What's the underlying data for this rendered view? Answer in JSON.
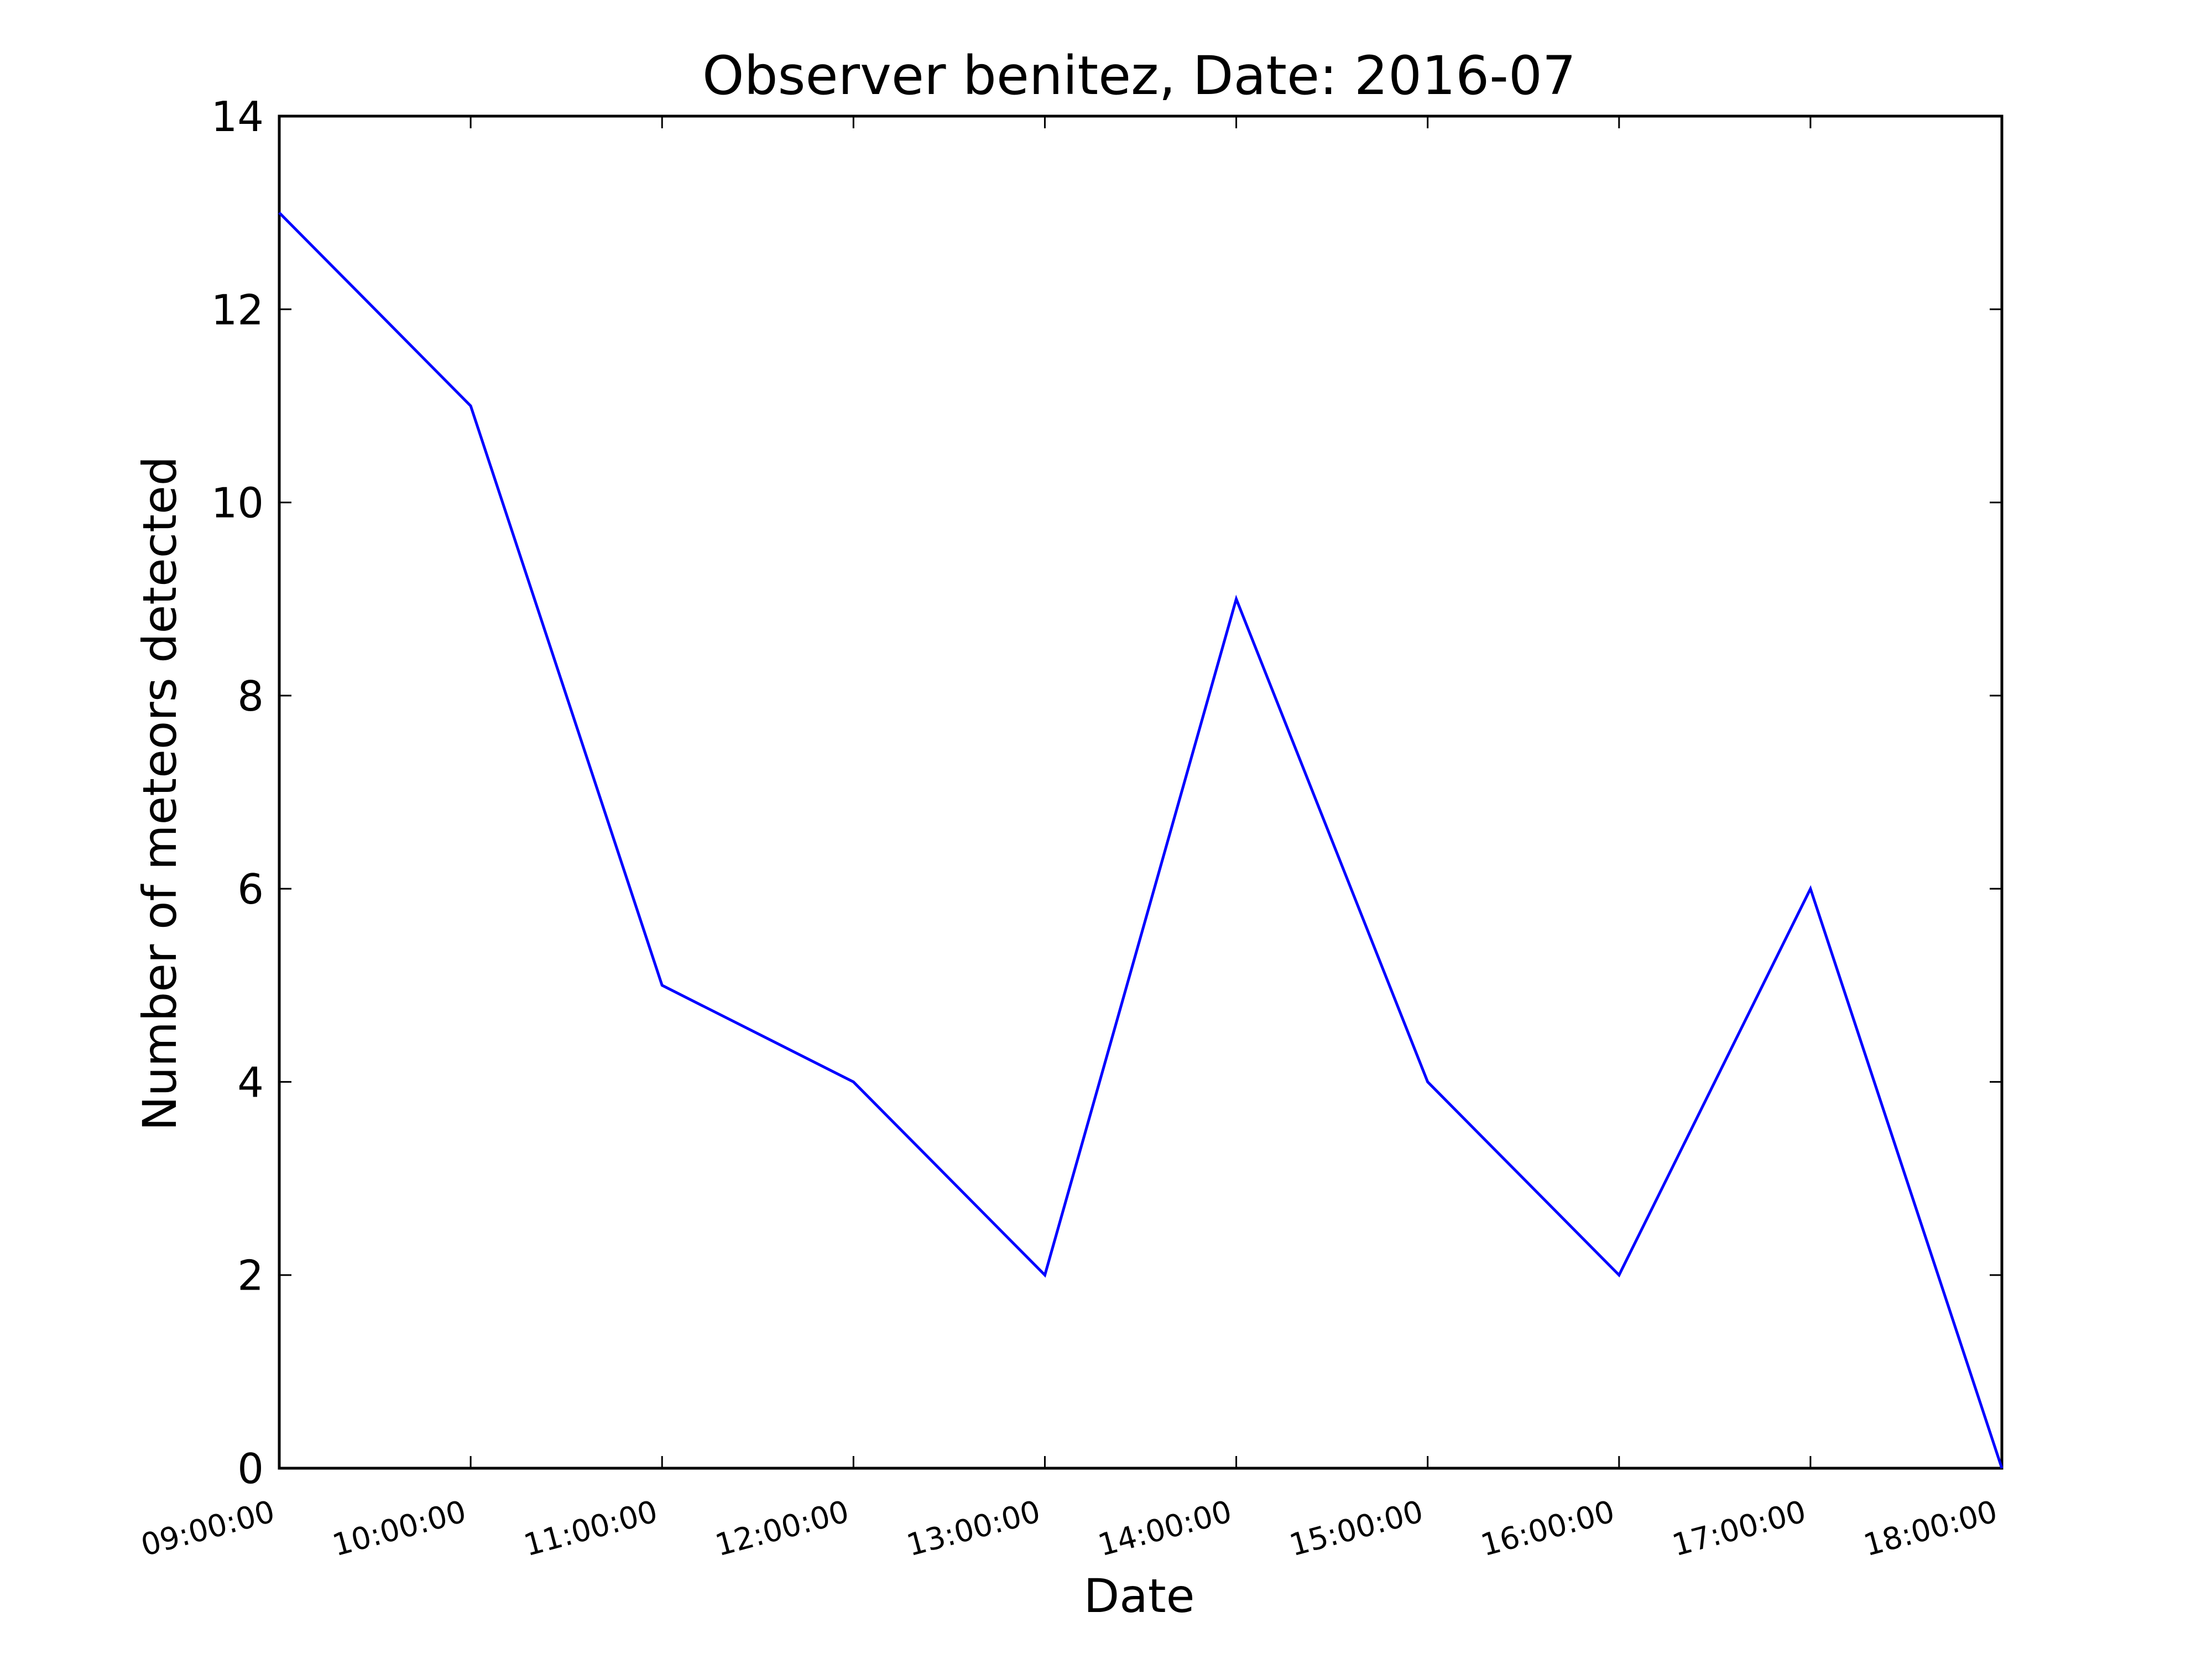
{
  "chart_data": {
    "type": "line",
    "title": "Observer benitez, Date: 2016-07",
    "xlabel": "Date",
    "ylabel": "Number of meteors detected",
    "categories": [
      "09:00:00",
      "10:00:00",
      "11:00:00",
      "12:00:00",
      "13:00:00",
      "14:00:00",
      "15:00:00",
      "16:00:00",
      "17:00:00",
      "18:00:00"
    ],
    "series": [
      {
        "values": [
          13,
          11,
          5,
          4,
          2,
          9,
          4,
          2,
          6,
          0
        ]
      }
    ],
    "ylim": [
      0,
      14
    ],
    "yticks": [
      0,
      2,
      4,
      6,
      8,
      10,
      12,
      14
    ],
    "grid": false,
    "colors": {
      "line": "#0000ff",
      "axes": "#000000"
    }
  }
}
